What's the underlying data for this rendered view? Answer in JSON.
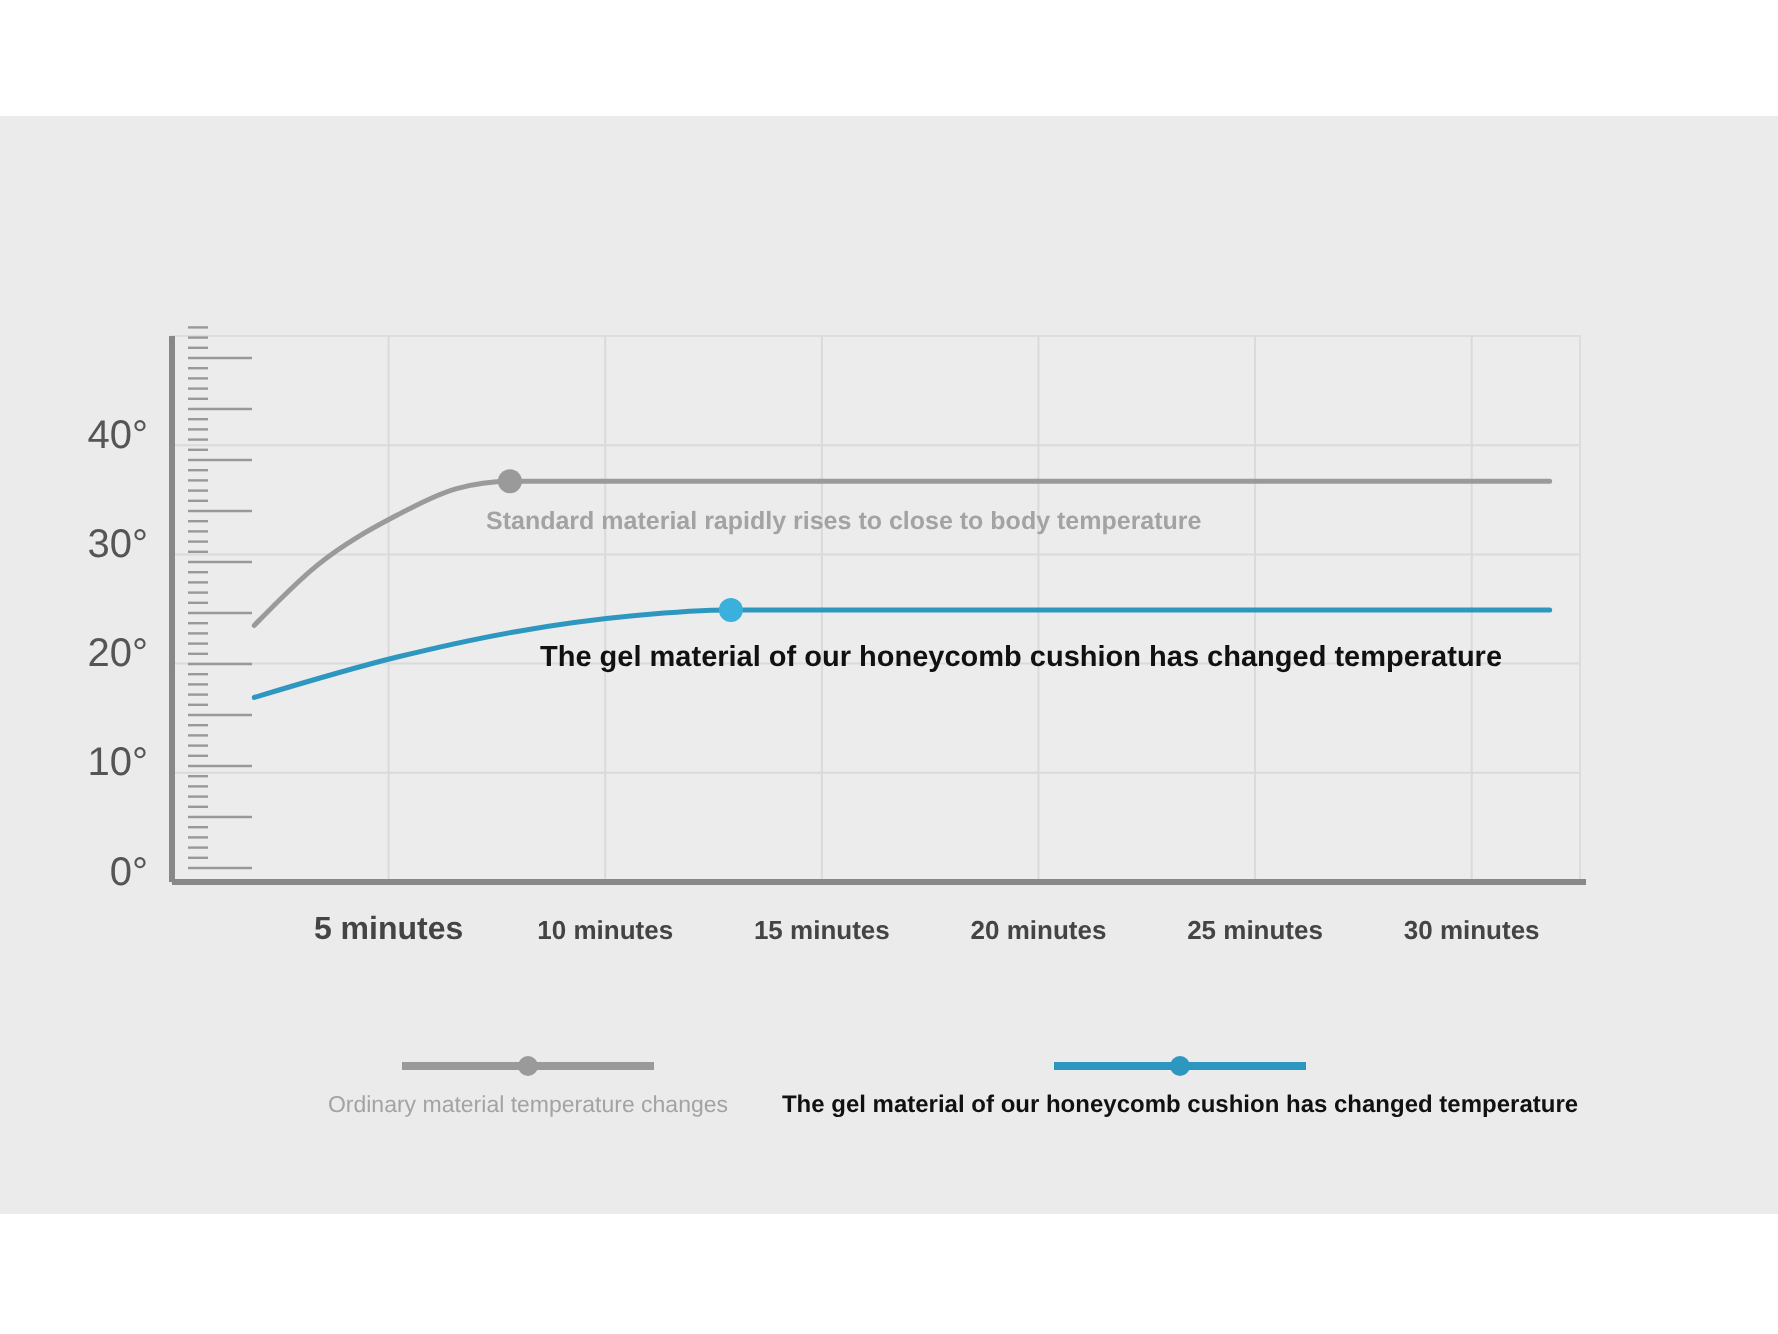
{
  "chart_data": {
    "type": "line",
    "xlim": [
      0,
      32.5
    ],
    "ylim": [
      0,
      50
    ],
    "xticks": [
      {
        "value": 5,
        "label": "5 minutes"
      },
      {
        "value": 10,
        "label": "10 minutes"
      },
      {
        "value": 15,
        "label": "15 minutes"
      },
      {
        "value": 20,
        "label": "20 minutes"
      },
      {
        "value": 25,
        "label": "25 minutes"
      },
      {
        "value": 30,
        "label": "30 minutes"
      }
    ],
    "yticks": [
      {
        "value": 0,
        "label": "0°"
      },
      {
        "value": 10,
        "label": "10°"
      },
      {
        "value": 20,
        "label": "20°"
      },
      {
        "value": 30,
        "label": "30°"
      },
      {
        "value": 40,
        "label": "40°"
      }
    ],
    "grid": true,
    "legend": "bottom",
    "line_style": "solid",
    "series": [
      {
        "name": "Ordinary material temperature changes",
        "color": "#9a9a9a",
        "x": [
          1.9,
          3.35,
          5.2,
          6.55,
          7.8,
          31.8
        ],
        "values": [
          23.5,
          29,
          33.6,
          36,
          36.7,
          36.7
        ]
      },
      {
        "name": "The gel material of our honeycomb cushion has changed temperature",
        "color": "#2e97c0",
        "x": [
          1.9,
          5.2,
          7.9,
          10.7,
          12.9,
          31.8
        ],
        "values": [
          16.9,
          20.6,
          22.9,
          24.4,
          24.9,
          24.9
        ]
      },
      {
        "type": "scatter",
        "color": "#9a9a9a",
        "x": [
          7.8
        ],
        "values": [
          36.7
        ]
      },
      {
        "type": "scatter",
        "color": "#3ab0dc",
        "x": [
          12.9
        ],
        "values": [
          24.9
        ]
      }
    ],
    "annotations": [
      "Standard material rapidly rises to close to body temperature",
      "The gel material of our honeycomb cushion has changed temperature"
    ]
  }
}
